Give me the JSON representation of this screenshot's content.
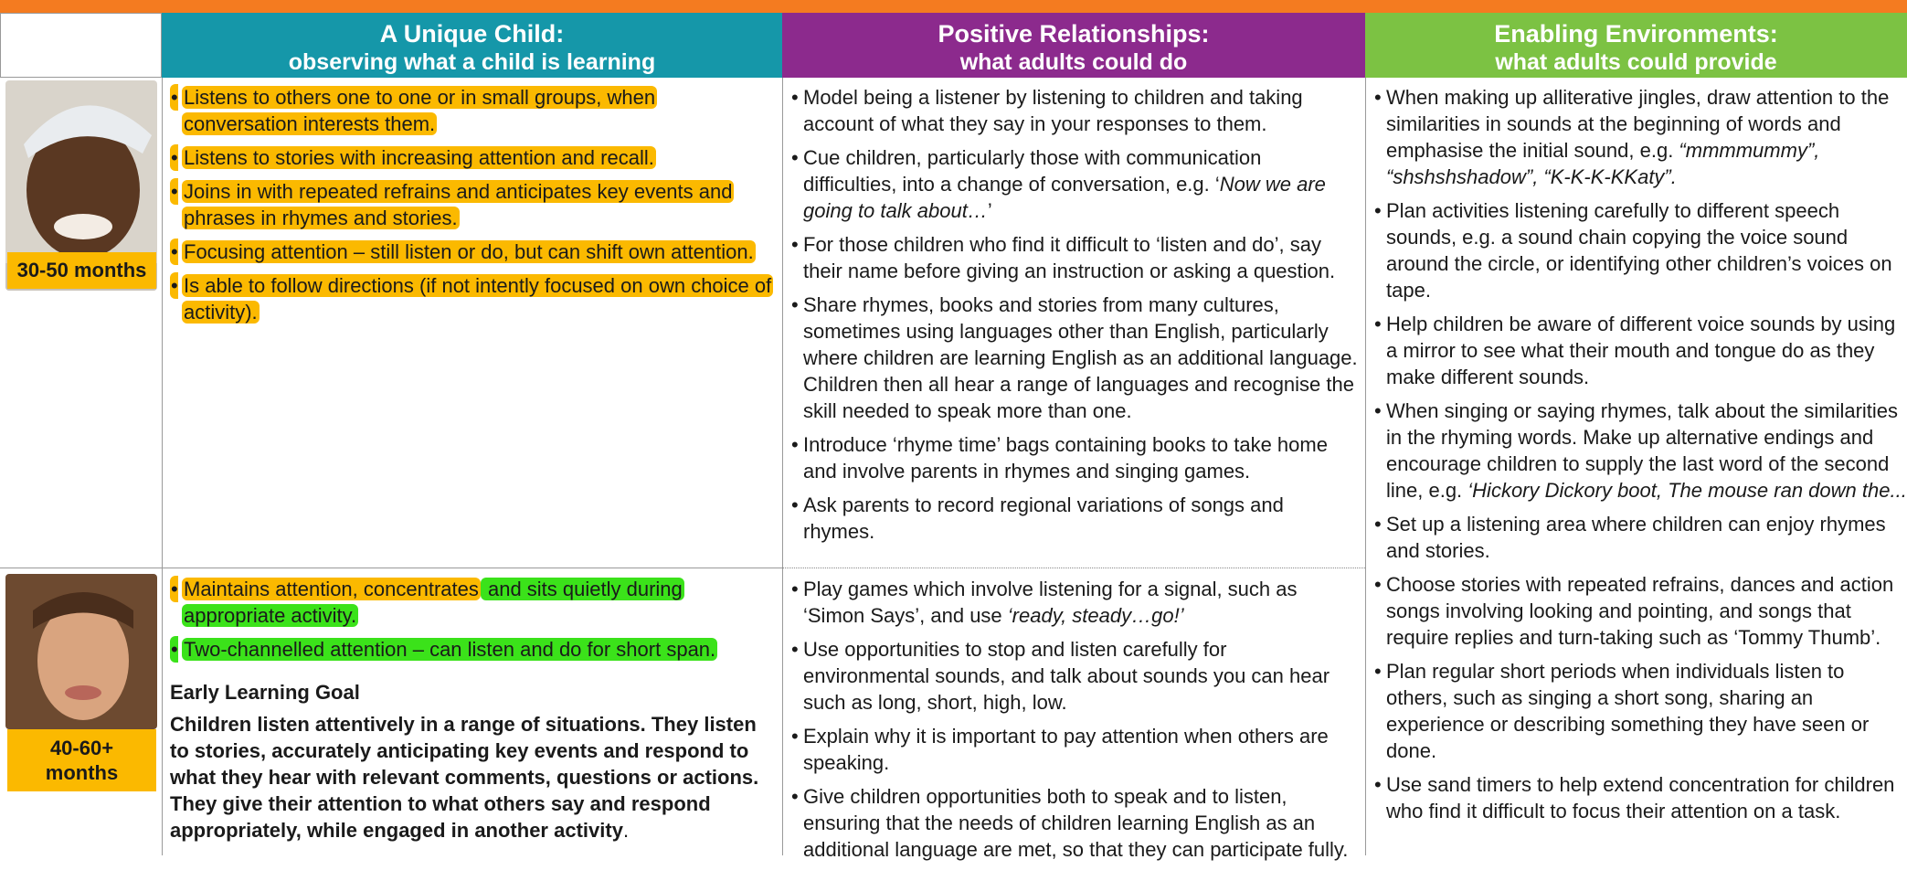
{
  "header": {
    "columns": [
      {
        "title": "A Unique Child:",
        "subtitle": "observing what a child is learning",
        "color": "#1597a9"
      },
      {
        "title": "Positive Relationships:",
        "subtitle": "what adults could do",
        "color": "#8c2a8d"
      },
      {
        "title": "Enabling Environments:",
        "subtitle": "what adults could provide",
        "color": "#7cc243"
      }
    ]
  },
  "rows": [
    {
      "age": "30-50 months",
      "items": [
        [
          {
            "text": "Listens to others one to one or in small groups, when conversation interests them.",
            "highlight": "#fbb900"
          }
        ],
        [
          {
            "text": "Listens to stories with increasing attention and recall.",
            "highlight": "#fbb900"
          }
        ],
        [
          {
            "text": "Joins in with repeated refrains and anticipates key events and phrases in rhymes and stories.",
            "highlight": "#fbb900"
          }
        ],
        [
          {
            "text": "Focusing attention – still listen or do, but can shift own attention.",
            "highlight": "#fbb900"
          }
        ],
        [
          {
            "text": "Is able to follow directions (if not intently focused on own choice of activity).",
            "highlight": "#fbb900"
          }
        ]
      ]
    },
    {
      "age": "40-60+ months",
      "items": [
        [
          {
            "text": "Maintains attention, concentrates",
            "highlight": "#fbb900"
          },
          {
            "text": " and sits quietly during appropriate activity.",
            "highlight": "#3be21a"
          }
        ],
        [
          {
            "text": "Two-channelled attention – can listen and do for short span.",
            "highlight": "#3be21a"
          }
        ]
      ],
      "goal": {
        "heading": "Early Learning Goal",
        "text": [
          {
            "text": "Children listen attentively in a range of situations. They listen to stories, accurately anticipating key events and respond to what they hear with relevant comments, questions or actions. They give their attention to what others say and respond appropriately, while engaged in another activity",
            "bold": true
          },
          {
            "text": "."
          }
        ]
      }
    }
  ],
  "adults": {
    "groups": [
      [
        [
          {
            "text": "Model being a listener by listening to children and taking account of what they say in your responses to them."
          }
        ],
        [
          {
            "text": "Cue children, particularly those with communication difficulties, into a change of conversation, e.g. ‘"
          },
          {
            "text": "Now we are going to talk about…",
            "italic": true
          },
          {
            "text": "’"
          }
        ],
        [
          {
            "text": "For those children who find it difficult to ‘listen and do’, say their name before giving an instruction or asking a question."
          }
        ],
        [
          {
            "text": "Share rhymes, books and stories from many cultures, sometimes using languages other than English, particularly where children are learning English as an additional language. Children then all hear a range of languages and recognise the skill needed to speak more than one."
          }
        ],
        [
          {
            "text": "Introduce ‘rhyme time’ bags containing books to take home and involve parents in rhymes and singing games."
          }
        ],
        [
          {
            "text": "Ask parents to record regional variations of songs and rhymes."
          }
        ]
      ],
      [
        [
          {
            "text": "Play games which involve listening for a signal, such as ‘Simon Says’, and use "
          },
          {
            "text": "‘ready, steady…go!’",
            "italic": true
          }
        ],
        [
          {
            "text": "Use opportunities to stop and listen carefully for environmental sounds, and talk about sounds you can hear such as long, short, high, low."
          }
        ],
        [
          {
            "text": "Explain why it is important to pay attention when others are speaking."
          }
        ],
        [
          {
            "text": "Give children opportunities both to speak and to listen, ensuring that the needs of children learning English as an additional language are met, so that they can participate fully."
          }
        ]
      ]
    ]
  },
  "environments": {
    "items": [
      [
        {
          "text": "When making up alliterative jingles, draw attention to the similarities in sounds at the beginning of words and emphasise the initial sound, e.g. "
        },
        {
          "text": "“mmmmummy”, “shshshshadow”, “K-K-K-KKaty”.",
          "italic": true
        }
      ],
      [
        {
          "text": "Plan activities listening carefully to different speech sounds, e.g. a sound chain copying the voice sound around the circle, or identifying other children’s voices on tape."
        }
      ],
      [
        {
          "text": "Help children be aware of different voice sounds by using a mirror to see what their mouth and tongue do as they make different sounds."
        }
      ],
      [
        {
          "text": "When singing or saying rhymes, talk about the similarities in the rhyming words. Make up alternative endings and encourage children to supply the last word of the second line, e.g. "
        },
        {
          "text": "‘Hickory Dickory boot, The mouse ran down the...",
          "italic": true
        }
      ],
      [
        {
          "text": "Set up a listening area where children can enjoy rhymes and stories."
        }
      ],
      [
        {
          "text": "Choose stories with repeated refrains, dances and action songs involving looking and pointing, and songs that require replies and turn-taking such as ‘Tommy Thumb’."
        }
      ],
      [
        {
          "text": "Plan regular short periods when individuals listen to others, such as singing a short song, sharing an experience or describing something they have seen or done."
        }
      ],
      [
        {
          "text": "Use sand timers to help extend concentration for children who find it difficult to focus their attention on a task."
        }
      ]
    ]
  }
}
